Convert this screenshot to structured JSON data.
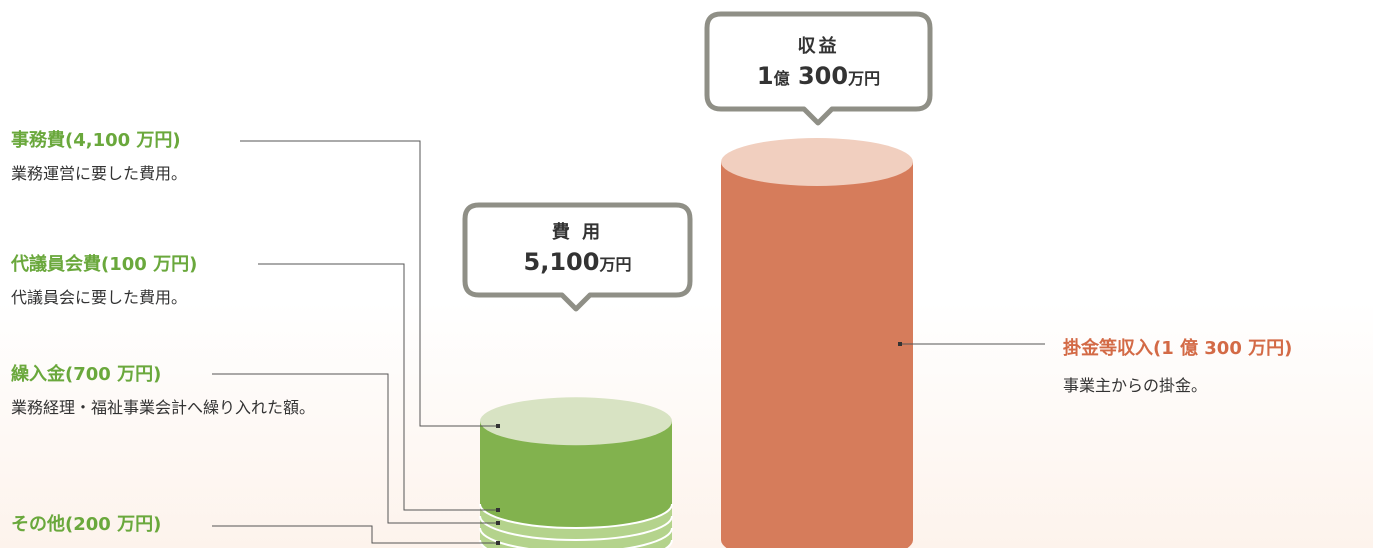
{
  "chart_data": {
    "type": "bar",
    "title": "",
    "xlabel": "",
    "ylabel": "",
    "categories": [
      "費用",
      "収益"
    ],
    "series": [
      {
        "name": "事務費",
        "category": "費用",
        "value": 4100,
        "color": "#82b24e",
        "top_color": "#d8e3c3"
      },
      {
        "name": "代議員会費",
        "category": "費用",
        "value": 100,
        "color": "#b4d38c"
      },
      {
        "name": "繰入金",
        "category": "費用",
        "value": 700,
        "color": "#b4d38c"
      },
      {
        "name": "その他",
        "category": "費用",
        "value": 200,
        "color": "#b4d38c"
      },
      {
        "name": "掛金等収入",
        "category": "収益",
        "value": 10300,
        "color": "#d67c5b",
        "top_color": "#f1cfbf"
      }
    ],
    "unit": "万円"
  },
  "bubbles": {
    "expense": {
      "head": "費 用",
      "value": "5,100",
      "unit": "万円"
    },
    "revenue": {
      "head": "収益",
      "value_prefix": "1",
      "value_mid": "億",
      "value": "300",
      "unit": "万円"
    }
  },
  "labels": {
    "jimu": {
      "title": "事務費(4,100 万円)",
      "desc": "業務運営に要した費用。"
    },
    "daigiin": {
      "title": "代議員会費(100 万円)",
      "desc": "代議員会に要した費用。"
    },
    "kurinyu": {
      "title": "繰入金(700 万円)",
      "desc": "業務経理・福祉事業会計へ繰り入れた額。"
    },
    "sonota": {
      "title": "その他(200 万円)",
      "desc": ""
    },
    "kakekin": {
      "title": "掛金等収入(1 億 300 万円)",
      "desc": "事業主からの掛金。"
    }
  },
  "colors": {
    "expense_title": "#6aa83c",
    "revenue_title": "#d36a46",
    "bubble_border": "#8f8f86",
    "leader": "#555555"
  }
}
